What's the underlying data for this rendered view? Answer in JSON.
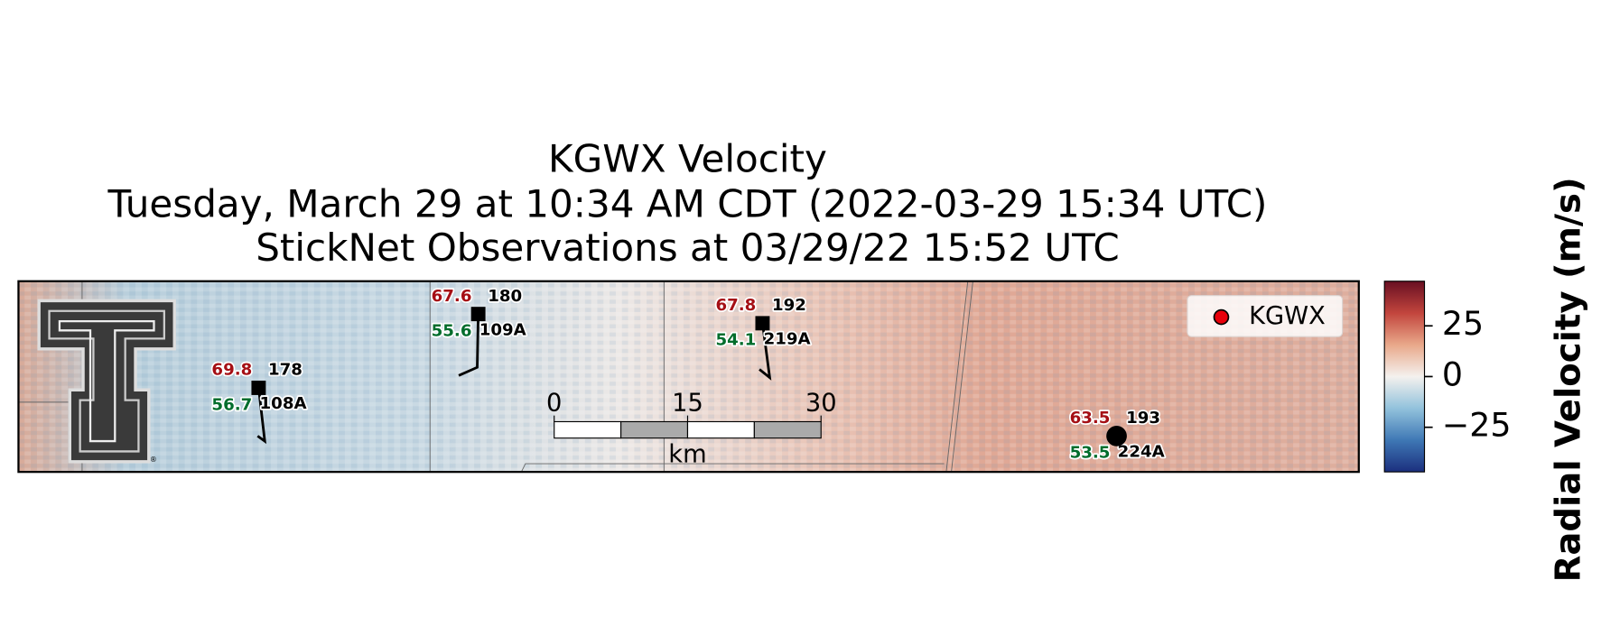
{
  "title": {
    "line1": "KGWX Velocity",
    "line2": "Tuesday, March 29 at 10:34 AM CDT (2022-03-29 15:34 UTC)",
    "line3": "StickNet Observations at 03/29/22 15:52 UTC"
  },
  "stations": [
    {
      "temperature": 69.8,
      "dewpoint": 56.7,
      "direction": 178,
      "id": "108A"
    },
    {
      "temperature": 67.6,
      "dewpoint": 55.6,
      "direction": 180,
      "id": "109A"
    },
    {
      "temperature": 67.8,
      "dewpoint": 54.1,
      "direction": 192,
      "id": "219A"
    },
    {
      "temperature": 63.5,
      "dewpoint": 53.5,
      "direction": 193,
      "id": "224A"
    }
  ],
  "scale_bar": {
    "ticks": [
      0,
      15,
      30
    ],
    "unit": "km"
  },
  "legend": {
    "label": "KGWX",
    "color": "#e8000b"
  },
  "colorbar": {
    "label": "Radial Velocity (m/s)",
    "lim": [
      -47,
      47
    ],
    "ticks": [
      25,
      0,
      {
        "value": -25,
        "label": "−25"
      }
    ],
    "colormap": [
      "#1b2f7e",
      "#3f78b5",
      "#92c2dc",
      "#f4f1ee",
      "#e9a88a",
      "#c2453d",
      "#680f22"
    ]
  }
}
